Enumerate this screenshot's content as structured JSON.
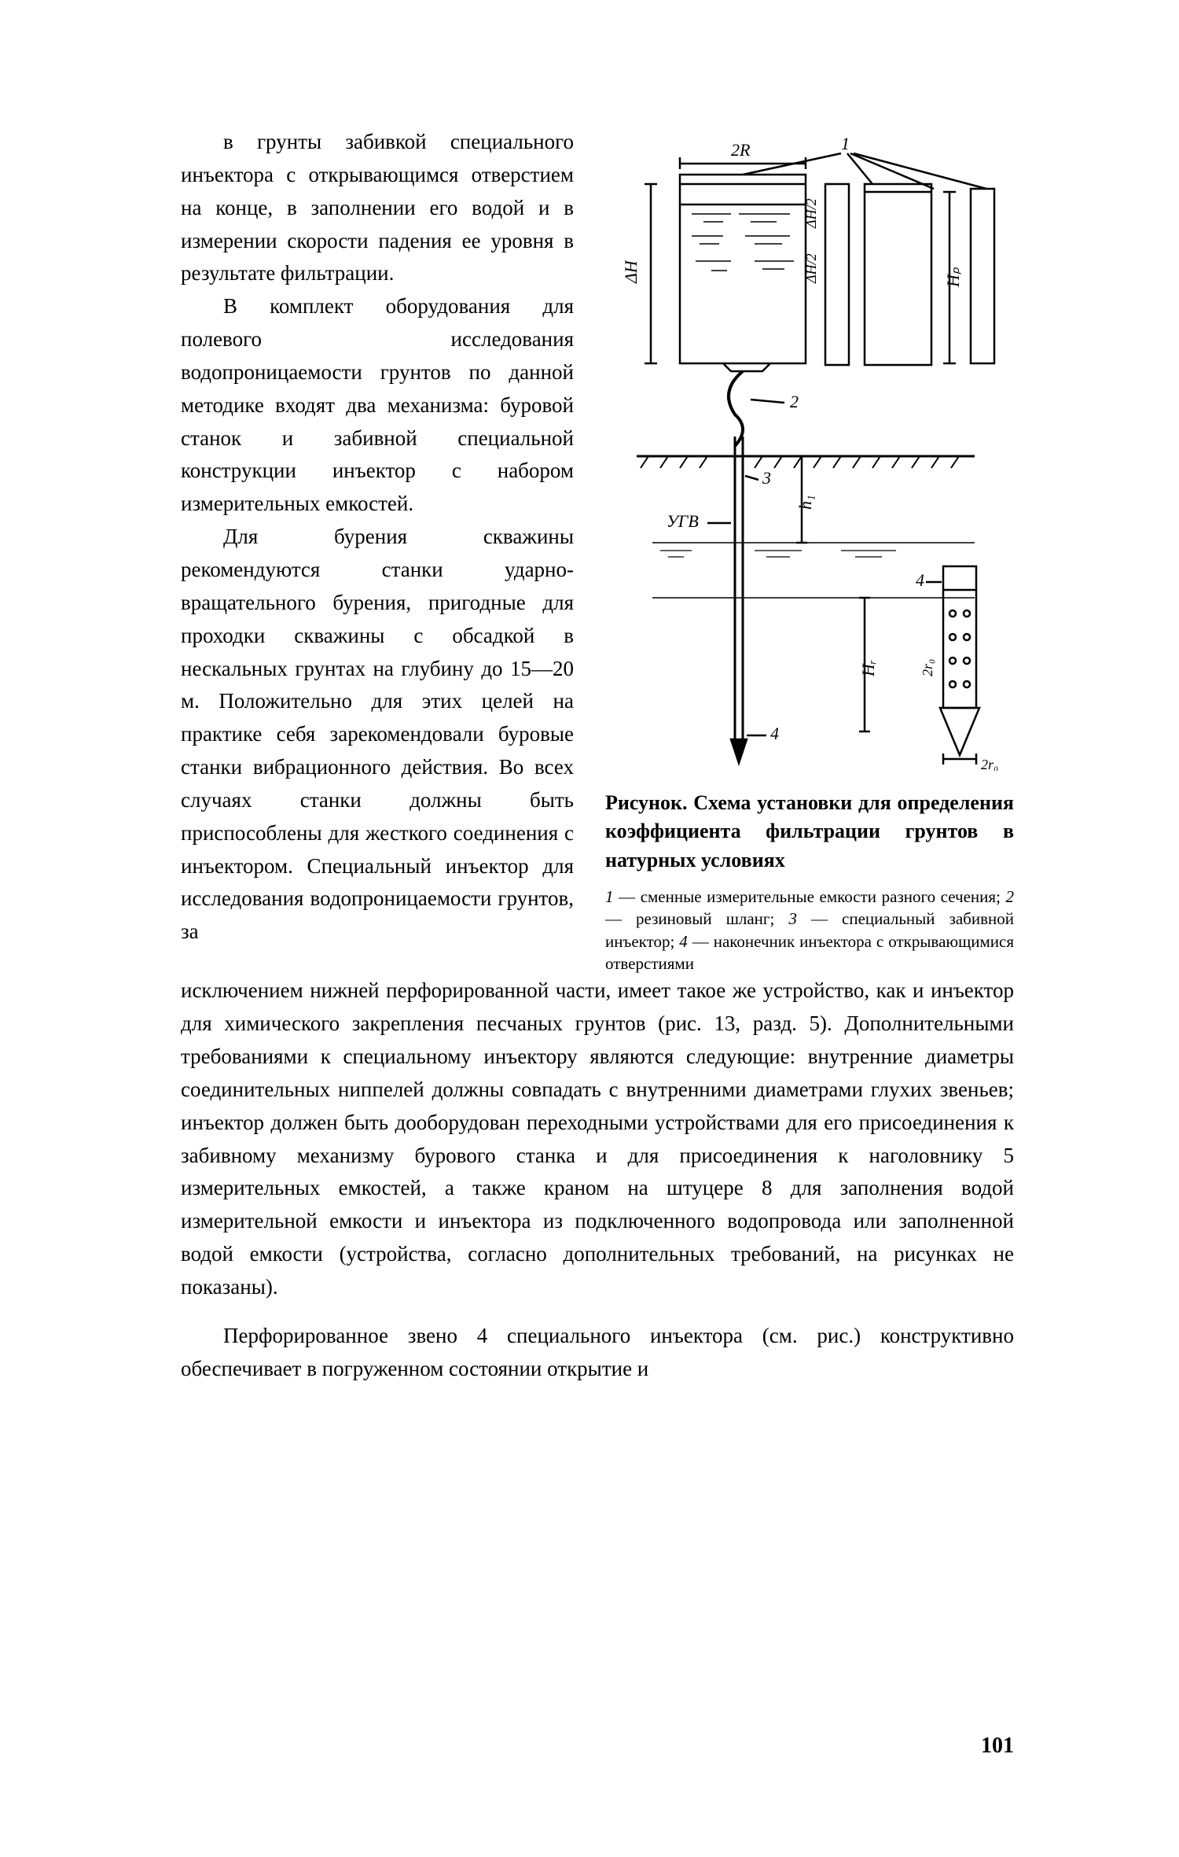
{
  "left": {
    "p1": "в грунты забивкой специального инъектора с открывающимся отверстием на конце, в заполнении его водой и в измерении скорости падения ее уровня в результате фильтрации.",
    "p2": "В комплект оборудования для полевого исследования водопроницаемости грунтов по данной методике входят два механизма: буровой станок и забивной специальной конструкции инъектор с набором измерительных емкостей.",
    "p3": "Для бурения скважины рекомендуются станки ударно-вращательного бурения, пригодные для проходки скважины с обсадкой в нескальных грунтах на глубину до 15—20 м. Положительно для этих целей на практике себя зарекомендовали буровые станки вибрационного действия. Во всех случаях станки должны быть приспособлены для жесткого соединения с инъектором. Специальный инъектор для исследования водопроницаемости грунтов, за"
  },
  "full": {
    "p4": "исключением нижней перфорированной части, имеет такое же устройство, как и инъектор для химического закрепления песчаных грунтов (рис. 13, разд. 5). Дополнительными требованиями к специальному инъектору являются следующие: внутренние диаметры соединительных ниппелей должны совпадать с внутренними диаметрами глухих звеньев; инъектор должен быть дооборудован переходными устройствами для его присоединения к забивному механизму бурового станка и для присоединения к наголовнику 5 измерительных емкостей, а также краном на штуцере 8 для заполнения водой измерительной емкости и инъектора из подключенного водопровода или заполненной водой емкости (устройства, согласно дополнительных требований, на рисунках не показаны).",
    "p5": "Перфорированное звено 4 специального инъектора (см. рис.) конструктивно обеспечивает в погруженном состоянии открытие и"
  },
  "figure": {
    "caption": "Рисунок. Схема установки для определения коэффициента фильтрации грунтов в натурных условиях",
    "labels": {
      "n1": "1",
      "n2": "2",
      "n3": "3",
      "n4a": "4",
      "n4b": "4",
      "twoR": "2R",
      "dH": "ΔH",
      "dH2a": "ΔH/2",
      "dH2b": "ΔH/2",
      "hp": "Hₚ",
      "h1": "h₁",
      "hr": "Hᵣ",
      "ugv": "УГВ",
      "two_r0_a": "2r₀",
      "two_r0_b": "2r₀"
    },
    "colors": {
      "stroke": "#000000",
      "hatch": "#000000",
      "bg": "#ffffff"
    }
  },
  "legend": {
    "html": "<i>1</i> — сменные измерительные емкости разного сечения; <i>2</i> — резиновый шланг; <i>3</i> — специальный забивной инъектор; <i>4</i> — наконечник инъектора с открывающимися отверстиями"
  },
  "pagenum": "101"
}
